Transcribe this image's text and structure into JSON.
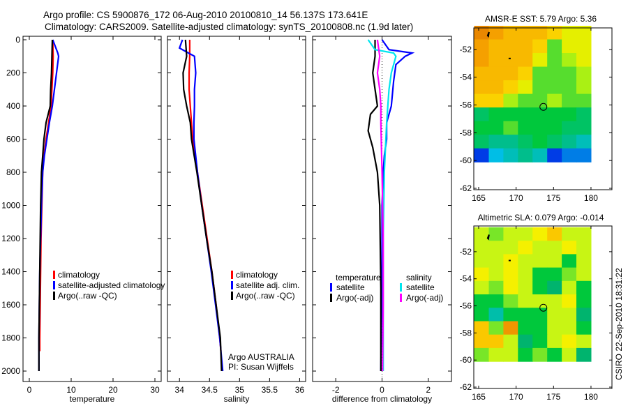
{
  "title_line1": "Argo profile: CS 5900876_172 06-Aug-2010 20100810_14 56.137S 173.641E",
  "title_line2": "Climatology: CARS2009. Satellite-adjusted climatology: synTS_20100808.nc (1.9d later)",
  "credit": "CSIRO 22-Sep-2010 18:31:22",
  "colors": {
    "climatology": "#ff0000",
    "satellite": "#0000ff",
    "argo": "#000000",
    "sal_satellite": "#00e5ee",
    "sal_argo": "#ff00ff"
  },
  "chart_data": [
    {
      "type": "line",
      "name": "temperature-profile",
      "xlabel": "temperature",
      "ylabel": "",
      "xlim": [
        -1.5,
        31.5
      ],
      "ylim": [
        -21,
        2063
      ],
      "y_reversed": true,
      "xticks": [
        0,
        10,
        20,
        30
      ],
      "yticks": [
        0,
        200,
        400,
        600,
        800,
        1000,
        1200,
        1400,
        1600,
        1800,
        2000
      ],
      "legend": [
        "climatology",
        "satellite-adjusted climatology",
        "Argo(..raw -QC)"
      ],
      "series": [
        {
          "name": "climatology",
          "color": "#ff0000",
          "points": [
            [
              0,
              5.6
            ],
            [
              100,
              5.7
            ],
            [
              200,
              5.6
            ],
            [
              300,
              5.4
            ],
            [
              400,
              5.2
            ],
            [
              500,
              4.6
            ],
            [
              600,
              4.0
            ],
            [
              700,
              3.5
            ],
            [
              800,
              3.2
            ],
            [
              1000,
              3.0
            ],
            [
              1200,
              2.8
            ],
            [
              1400,
              2.7
            ],
            [
              1600,
              2.6
            ],
            [
              1800,
              2.5
            ],
            [
              1880,
              2.5
            ]
          ]
        },
        {
          "name": "satellite-adjusted climatology",
          "color": "#0000ff",
          "points": [
            [
              0,
              5.6
            ],
            [
              80,
              6.8
            ],
            [
              100,
              7.0
            ],
            [
              200,
              6.5
            ],
            [
              300,
              6.0
            ],
            [
              400,
              5.5
            ],
            [
              500,
              4.8
            ],
            [
              600,
              4.2
            ],
            [
              700,
              3.6
            ],
            [
              800,
              3.2
            ],
            [
              1000,
              2.9
            ],
            [
              1200,
              2.7
            ],
            [
              1400,
              2.5
            ],
            [
              1600,
              2.4
            ],
            [
              1800,
              2.3
            ],
            [
              2000,
              2.3
            ]
          ]
        },
        {
          "name": "Argo(..raw -QC)",
          "color": "#000000",
          "points": [
            [
              0,
              5.5
            ],
            [
              100,
              5.4
            ],
            [
              200,
              5.3
            ],
            [
              300,
              5.1
            ],
            [
              400,
              5.0
            ],
            [
              500,
              4.0
            ],
            [
              600,
              3.5
            ],
            [
              700,
              3.2
            ],
            [
              800,
              2.9
            ],
            [
              1000,
              2.7
            ],
            [
              1200,
              2.6
            ],
            [
              1400,
              2.5
            ],
            [
              1600,
              2.4
            ],
            [
              1800,
              2.3
            ],
            [
              2000,
              2.3
            ]
          ]
        }
      ]
    },
    {
      "type": "line",
      "name": "salinity-profile",
      "xlabel": "salinity",
      "xlim": [
        33.8,
        36.1
      ],
      "ylim": [
        -21,
        2063
      ],
      "y_reversed": true,
      "xticks": [
        34,
        34.5,
        35,
        35.5,
        36
      ],
      "legend": [
        "climatology",
        "satellite adj. clim.",
        "Argo(..raw -QC)"
      ],
      "annotation": [
        "Argo AUSTRALIA",
        "PI: Susan Wijffels"
      ],
      "series": [
        {
          "name": "climatology",
          "color": "#ff0000",
          "points": [
            [
              0,
              34.17
            ],
            [
              100,
              34.17
            ],
            [
              200,
              34.16
            ],
            [
              300,
              34.16
            ],
            [
              400,
              34.18
            ],
            [
              500,
              34.2
            ],
            [
              600,
              34.22
            ],
            [
              800,
              34.3
            ],
            [
              1000,
              34.38
            ],
            [
              1200,
              34.46
            ],
            [
              1400,
              34.54
            ],
            [
              1600,
              34.61
            ],
            [
              1800,
              34.67
            ],
            [
              1880,
              34.69
            ]
          ]
        },
        {
          "name": "satellite adj. clim.",
          "color": "#0000ff",
          "points": [
            [
              0,
              34.05
            ],
            [
              50,
              34.0
            ],
            [
              80,
              34.15
            ],
            [
              100,
              34.25
            ],
            [
              200,
              34.27
            ],
            [
              300,
              34.25
            ],
            [
              400,
              34.25
            ],
            [
              500,
              34.24
            ],
            [
              600,
              34.24
            ],
            [
              800,
              34.3
            ],
            [
              1000,
              34.37
            ],
            [
              1200,
              34.45
            ],
            [
              1400,
              34.53
            ],
            [
              1600,
              34.6
            ],
            [
              1800,
              34.67
            ],
            [
              2000,
              34.72
            ]
          ]
        },
        {
          "name": "Argo(..raw -QC)",
          "color": "#000000",
          "points": [
            [
              0,
              34.1
            ],
            [
              100,
              34.12
            ],
            [
              200,
              34.06
            ],
            [
              300,
              34.07
            ],
            [
              400,
              34.12
            ],
            [
              500,
              34.18
            ],
            [
              600,
              34.2
            ],
            [
              800,
              34.29
            ],
            [
              1000,
              34.37
            ],
            [
              1200,
              34.45
            ],
            [
              1400,
              34.54
            ],
            [
              1600,
              34.61
            ],
            [
              1800,
              34.68
            ],
            [
              2000,
              34.7
            ]
          ]
        }
      ]
    },
    {
      "type": "line",
      "name": "difference-profile",
      "xlabel": "difference from climatology",
      "xlim": [
        -3,
        3
      ],
      "ylim": [
        -21,
        2063
      ],
      "y_reversed": true,
      "xticks": [
        -2,
        0,
        2
      ],
      "legend_headers": [
        "temperature",
        "salinity"
      ],
      "legend": [
        "satellite",
        "Argo(-adj)",
        "satellite",
        "Argo(-adj)"
      ],
      "series": [
        {
          "name": "temperature satellite",
          "color": "#0000ff",
          "points": [
            [
              0,
              0
            ],
            [
              60,
              0.3
            ],
            [
              80,
              1.3
            ],
            [
              100,
              1.0
            ],
            [
              150,
              0.6
            ],
            [
              250,
              0.5
            ],
            [
              400,
              0.4
            ],
            [
              500,
              0.2
            ],
            [
              600,
              0.2
            ],
            [
              700,
              0.1
            ],
            [
              800,
              0.05
            ],
            [
              1000,
              0
            ],
            [
              1500,
              0
            ],
            [
              2000,
              -0.05
            ]
          ]
        },
        {
          "name": "temperature Argo(-adj)",
          "color": "#000000",
          "points": [
            [
              0,
              -0.3
            ],
            [
              100,
              -0.3
            ],
            [
              200,
              -0.4
            ],
            [
              300,
              -0.3
            ],
            [
              400,
              -0.2
            ],
            [
              450,
              -0.5
            ],
            [
              550,
              -0.6
            ],
            [
              650,
              -0.4
            ],
            [
              800,
              -0.2
            ],
            [
              1000,
              -0.1
            ],
            [
              1500,
              -0.05
            ],
            [
              2000,
              -0.05
            ]
          ]
        },
        {
          "name": "salinity satellite",
          "color": "#00e5ee",
          "points": [
            [
              0,
              -0.6
            ],
            [
              60,
              -0.3
            ],
            [
              80,
              0.5
            ],
            [
              100,
              0.6
            ],
            [
              200,
              0.4
            ],
            [
              300,
              0.3
            ],
            [
              500,
              0.2
            ],
            [
              800,
              0.1
            ],
            [
              1200,
              0.05
            ],
            [
              2000,
              0.05
            ]
          ]
        },
        {
          "name": "salinity Argo(-adj)",
          "color": "#ff00ff",
          "points": [
            [
              0,
              -0.2
            ],
            [
              100,
              -0.1
            ],
            [
              200,
              -0.2
            ],
            [
              300,
              -0.1
            ],
            [
              400,
              -0.05
            ],
            [
              500,
              -0.05
            ],
            [
              800,
              0
            ],
            [
              1200,
              0.05
            ],
            [
              1600,
              0.05
            ],
            [
              2000,
              0.02
            ]
          ]
        }
      ]
    },
    {
      "type": "heatmap",
      "name": "sst-map",
      "title": "AMSR-E SST: 5.79 Argo: 5.36",
      "xlim": [
        164.35,
        182.8
      ],
      "ylim": [
        -62.1,
        -50.45
      ],
      "xticks": [
        165,
        170,
        175,
        180
      ],
      "yticks": [
        -52,
        -54,
        -56,
        -58,
        -60,
        -62
      ],
      "ytick_labels": [
        "-52",
        "-54",
        "-56",
        "-58",
        "-60",
        "-62"
      ],
      "grid_lon": [
        164.4,
        180
      ],
      "grid_lat": [
        -50.3,
        -60.1
      ],
      "float_position": [
        173.641,
        -56.137
      ],
      "values": [
        [
          8.5,
          8,
          7.5,
          7.5,
          7.5,
          7,
          6.5,
          6.5
        ],
        [
          8,
          7.5,
          7.5,
          7.5,
          7,
          5.5,
          6.5,
          6.5
        ],
        [
          8,
          7.5,
          7.5,
          7.5,
          6.5,
          5.5,
          6,
          6.5
        ],
        [
          7.5,
          7.5,
          7.5,
          7,
          5.5,
          5.5,
          5.5,
          6
        ],
        [
          7.5,
          7.5,
          7,
          6.5,
          5.5,
          5.5,
          5.5,
          6
        ],
        [
          7,
          7,
          6,
          5.5,
          5.5,
          6,
          5.5,
          5.5
        ],
        [
          4.5,
          5,
          5,
          5,
          5,
          5,
          5,
          4.5
        ],
        [
          5,
          5,
          5.5,
          5,
          5,
          5,
          4.5,
          4.5
        ],
        [
          4.5,
          4,
          4,
          4.5,
          5,
          4.5,
          4,
          3.5
        ],
        [
          2,
          3,
          3.5,
          4,
          3.5,
          2,
          2.5,
          2.5
        ]
      ]
    },
    {
      "type": "heatmap",
      "name": "sla-map",
      "title": "Altimetric SLA: 0.079 Argo: -0.014",
      "xlim": [
        164.35,
        182.8
      ],
      "ylim": [
        -62.1,
        -50.1
      ],
      "xticks": [
        165,
        170,
        175,
        180
      ],
      "yticks": [
        -52,
        -54,
        -56,
        -58,
        -60,
        -62
      ],
      "ytick_labels": [
        "-52",
        "-54",
        "-56",
        "-58",
        "-60",
        "-62"
      ],
      "grid_lon": [
        164.4,
        180
      ],
      "grid_lat": [
        -50.2,
        -60.1
      ],
      "float_position": [
        173.641,
        -56.137
      ],
      "values": [
        [
          0,
          -0.05,
          0,
          0,
          0.05,
          0.1,
          0,
          0
        ],
        [
          0,
          0,
          0,
          0.05,
          0,
          0,
          0.05,
          0
        ],
        [
          0,
          0,
          0.05,
          0,
          0,
          0,
          -0.1,
          0
        ],
        [
          0.05,
          0,
          0.05,
          0,
          -0.1,
          -0.1,
          -0.05,
          0
        ],
        [
          0,
          -0.05,
          0.05,
          0,
          -0.1,
          -0.15,
          0,
          -0.1
        ],
        [
          -0.1,
          -0.1,
          -0.05,
          0,
          0,
          0,
          0.05,
          -0.1
        ],
        [
          -0.1,
          -0.2,
          -0.1,
          -0.1,
          -0.1,
          0,
          0,
          -0.15
        ],
        [
          0.1,
          -0.05,
          0.15,
          -0.1,
          -0.1,
          0,
          0,
          -0.1
        ],
        [
          0.1,
          0.1,
          0,
          -0.15,
          -0.1,
          0,
          0.05,
          0
        ],
        [
          -0.05,
          0,
          0,
          -0.1,
          -0.05,
          -0.1,
          0,
          -0.15
        ]
      ]
    }
  ]
}
